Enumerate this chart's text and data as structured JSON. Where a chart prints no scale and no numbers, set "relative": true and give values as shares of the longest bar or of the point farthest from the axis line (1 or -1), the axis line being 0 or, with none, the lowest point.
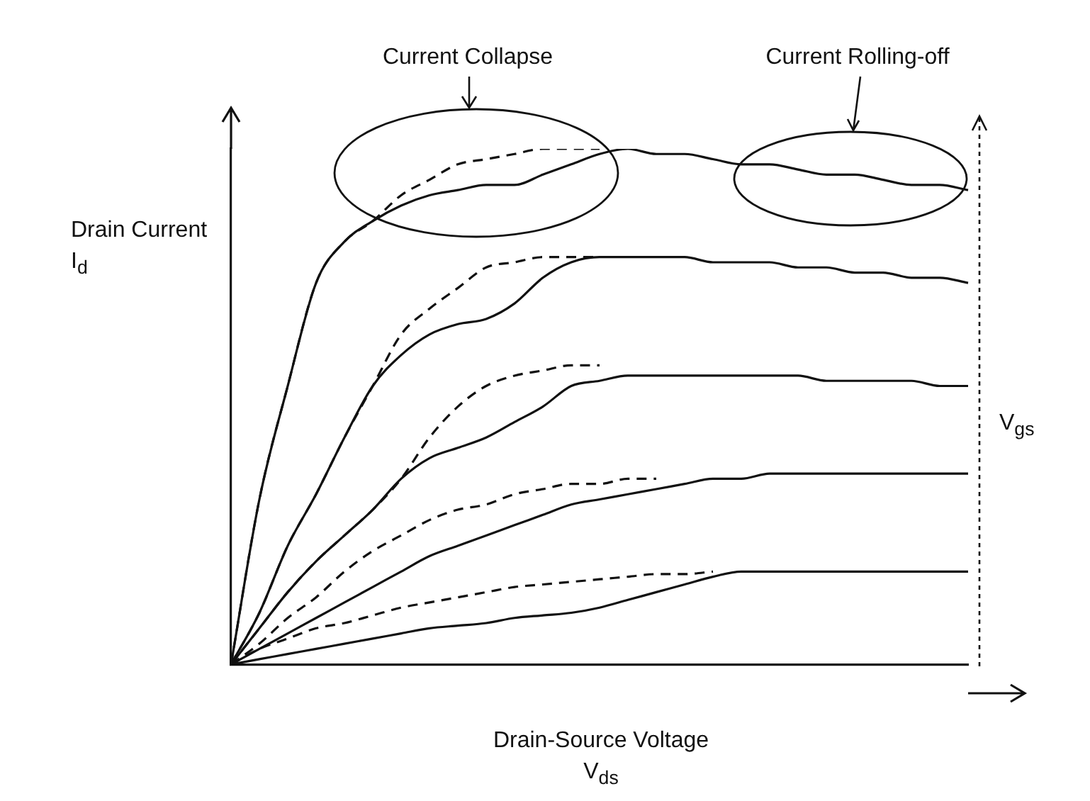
{
  "chart_data": {
    "type": "line",
    "relative": true,
    "xlabel": "Drain-Source Voltage V$_{ds}$",
    "ylabel": "Drain Current I$_{d}$",
    "annotations": [
      "Current Collapse",
      "Current Rolling-off",
      "V$_{gs}$"
    ],
    "legend": false,
    "marker": "none",
    "categories": [
      null,
      null,
      null,
      null,
      null,
      null,
      null,
      null,
      null,
      null,
      null,
      null,
      null,
      null,
      null,
      null,
      null,
      null,
      null,
      null,
      null,
      null,
      null,
      null,
      null,
      null,
      null
    ],
    "series": [
      {
        "color": "#111111",
        "line_style": "solid",
        "values": [
          0,
          0.32,
          0.54,
          0.74,
          0.82,
          0.86,
          0.89,
          0.91,
          0.92,
          0.93,
          0.93,
          0.95,
          0.97,
          0.99,
          1.0,
          0.99,
          0.99,
          0.98,
          0.97,
          0.97,
          0.96,
          0.95,
          0.95,
          0.94,
          0.93,
          0.93,
          0.92
        ]
      },
      {
        "color": "#111111",
        "line_style": "dashed",
        "values": [
          0,
          0.32,
          0.54,
          0.74,
          0.82,
          0.86,
          0.91,
          0.94,
          0.97,
          0.98,
          0.99,
          1.0,
          1.0,
          1.0,
          null,
          null,
          null,
          null,
          null,
          null,
          null,
          null,
          null,
          null,
          null,
          null,
          null
        ]
      },
      {
        "color": "#111111",
        "line_style": "solid",
        "values": [
          0,
          0.1,
          0.23,
          0.33,
          0.44,
          0.54,
          0.6,
          0.64,
          0.66,
          0.67,
          0.7,
          0.75,
          0.78,
          0.79,
          0.79,
          0.79,
          0.79,
          0.78,
          0.78,
          0.78,
          0.77,
          0.77,
          0.76,
          0.76,
          0.75,
          0.75,
          0.74
        ]
      },
      {
        "color": "#111111",
        "line_style": "dashed",
        "values": [
          0,
          0.1,
          0.23,
          0.33,
          0.44,
          0.54,
          0.64,
          0.69,
          0.73,
          0.77,
          0.78,
          0.79,
          0.79,
          0.79,
          null,
          null,
          null,
          null,
          null,
          null,
          null,
          null,
          null,
          null,
          null,
          null,
          null
        ]
      },
      {
        "color": "#111111",
        "line_style": "solid",
        "values": [
          0,
          0.07,
          0.14,
          0.2,
          0.25,
          0.3,
          0.36,
          0.4,
          0.42,
          0.44,
          0.47,
          0.5,
          0.54,
          0.55,
          0.56,
          0.56,
          0.56,
          0.56,
          0.56,
          0.56,
          0.56,
          0.55,
          0.55,
          0.55,
          0.55,
          0.54,
          0.54
        ]
      },
      {
        "color": "#111111",
        "line_style": "dashed",
        "values": [
          0,
          0.07,
          0.14,
          0.2,
          0.25,
          0.3,
          0.36,
          0.44,
          0.5,
          0.54,
          0.56,
          0.57,
          0.58,
          0.58,
          null,
          null,
          null,
          null,
          null,
          null,
          null,
          null,
          null,
          null,
          null,
          null,
          null
        ]
      },
      {
        "color": "#111111",
        "line_style": "solid",
        "values": [
          0,
          0.03,
          0.06,
          0.09,
          0.12,
          0.15,
          0.18,
          0.21,
          0.23,
          0.25,
          0.27,
          0.29,
          0.31,
          0.32,
          0.33,
          0.34,
          0.35,
          0.36,
          0.36,
          0.37,
          0.37,
          0.37,
          0.37,
          0.37,
          0.37,
          0.37,
          0.37
        ]
      },
      {
        "color": "#111111",
        "line_style": "dashed",
        "values": [
          0,
          0.04,
          0.09,
          0.13,
          0.18,
          0.22,
          0.25,
          0.28,
          0.3,
          0.31,
          0.33,
          0.34,
          0.35,
          0.35,
          0.36,
          0.36,
          null,
          null,
          null,
          null,
          null,
          null,
          null,
          null,
          null,
          null,
          null
        ]
      },
      {
        "color": "#111111",
        "line_style": "solid",
        "values": [
          0,
          0.01,
          0.02,
          0.03,
          0.04,
          0.05,
          0.06,
          0.07,
          0.075,
          0.08,
          0.09,
          0.095,
          0.1,
          0.11,
          0.125,
          0.14,
          0.155,
          0.17,
          0.18,
          0.18,
          0.18,
          0.18,
          0.18,
          0.18,
          0.18,
          0.18,
          0.18
        ]
      },
      {
        "color": "#111111",
        "line_style": "dashed",
        "values": [
          0,
          0.03,
          0.05,
          0.07,
          0.08,
          0.095,
          0.11,
          0.12,
          0.13,
          0.14,
          0.15,
          0.155,
          0.16,
          0.165,
          0.17,
          0.175,
          0.175,
          0.18,
          null,
          null,
          null,
          null,
          null,
          null,
          null,
          null,
          null
        ]
      }
    ]
  }
}
